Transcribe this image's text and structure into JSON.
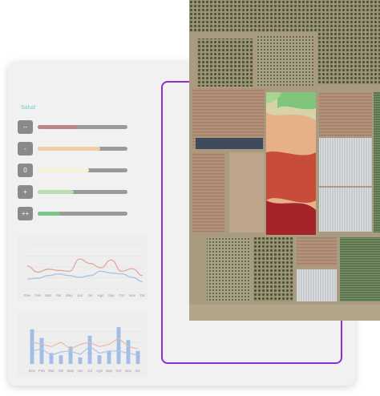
{
  "legend": {
    "title": "Salud",
    "items": [
      {
        "label": "--",
        "color": "#b98687",
        "fraction": 0.45
      },
      {
        "label": "-",
        "color": "#f1ceaa",
        "fraction": 0.7
      },
      {
        "label": "0",
        "color": "#f4f1d6",
        "fraction": 0.57
      },
      {
        "label": "+",
        "color": "#b9dfae",
        "fraction": 0.4
      },
      {
        "label": "++",
        "color": "#7cc48a",
        "fraction": 0.25
      }
    ]
  },
  "chart_data": [
    {
      "type": "line",
      "categories": [
        "Ene",
        "Feb",
        "Mar",
        "Abr",
        "May",
        "Jun",
        "Jul",
        "Ago",
        "Sep",
        "Oct",
        "Nov",
        "Dic"
      ],
      "series": [
        {
          "color": "#e5a59c",
          "values": [
            52,
            38,
            45,
            42,
            40,
            68,
            58,
            48,
            66,
            40,
            46,
            30
          ]
        },
        {
          "color": "#a9c2e4",
          "values": [
            22,
            24,
            30,
            34,
            30,
            26,
            30,
            40,
            36,
            34,
            26,
            16
          ]
        }
      ],
      "ylim": [
        0,
        100
      ]
    },
    {
      "type": "bar",
      "categories": [
        "Ene",
        "Feb",
        "Mar",
        "Abr",
        "May",
        "Jun",
        "Jul",
        "Ago",
        "Sep",
        "Oct",
        "Nov",
        "Dic"
      ],
      "values": [
        80,
        60,
        25,
        20,
        40,
        15,
        65,
        20,
        30,
        85,
        55,
        30
      ],
      "series": [
        {
          "color": "#e8b9ad",
          "values": [
            50,
            45,
            40,
            50,
            35,
            45,
            50,
            40,
            45,
            60,
            40,
            35
          ]
        },
        {
          "color": "#aec6e6",
          "values": [
            30,
            35,
            20,
            28,
            30,
            22,
            40,
            25,
            30,
            30,
            25,
            20
          ]
        }
      ],
      "ylim": [
        0,
        100
      ]
    }
  ],
  "colors": {
    "accent": "#8d2fcf",
    "panel": "#f1f1f1"
  }
}
